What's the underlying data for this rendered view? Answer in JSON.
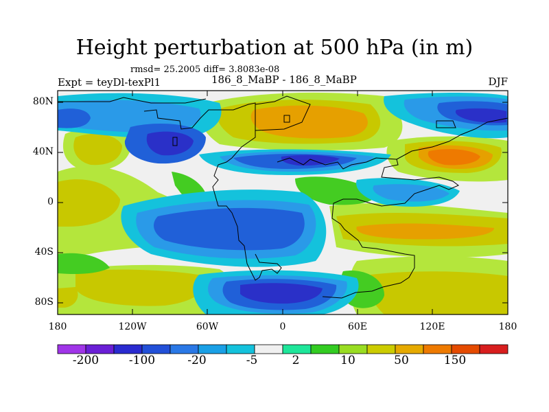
{
  "header": {
    "title": "Height perturbation at 500 hPa (in m)",
    "stats": "rmsd= 25.2005 diff= 3.8083e-08",
    "experiment": "Expt = teyDl-texPl1",
    "run": "186_8_MaBP - 186_8_MaBP",
    "season": "DJF"
  },
  "map": {
    "y_ticks": [
      "80N",
      "40N",
      "0",
      "40S",
      "80S"
    ],
    "x_ticks": [
      "180",
      "120W",
      "60W",
      "0",
      "60E",
      "120E",
      "180"
    ]
  },
  "colorbar": {
    "colors": [
      "#a035e8",
      "#6a1fd6",
      "#2a2bd0",
      "#2250d8",
      "#2a78e6",
      "#1aa0e6",
      "#14c2dc",
      "#f0f0f0",
      "#1ee69a",
      "#33cc22",
      "#99dd22",
      "#cccc00",
      "#e6aa00",
      "#ee7a00",
      "#e54b00",
      "#d81e1e"
    ],
    "labels": [
      "-200",
      "-100",
      "-20",
      "-5",
      "2",
      "10",
      "50",
      "150"
    ]
  },
  "colors": {
    "neutral": "#f0f0f0",
    "light_green": "#b4e63c",
    "green": "#44cc22",
    "yellow_olive": "#c8c800",
    "orange": "#e6a000",
    "dark_orange": "#ee7a00",
    "cyan": "#14c2dc",
    "sky": "#2a9ae8",
    "blue": "#2060d8",
    "deep_blue": "#2a30c8"
  }
}
